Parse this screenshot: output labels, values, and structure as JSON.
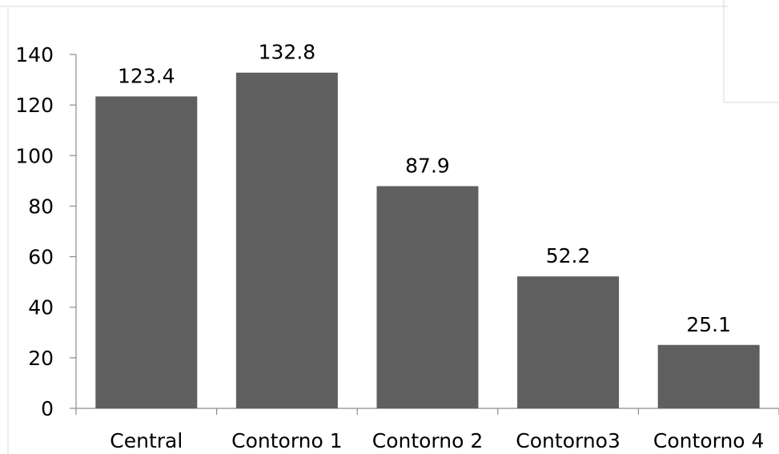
{
  "chart_data": {
    "type": "bar",
    "categories": [
      "Central",
      "Contorno 1",
      "Contorno 2",
      "Contorno3",
      "Contorno 4"
    ],
    "values": [
      123.4,
      132.8,
      87.9,
      52.2,
      25.1
    ],
    "value_labels": [
      "123.4",
      "132.8",
      "87.9",
      "52.2",
      "25.1"
    ],
    "yticks": [
      "0",
      "20",
      "40",
      "60",
      "80",
      "100",
      "120",
      "140"
    ],
    "ylim": [
      0,
      140
    ],
    "grid": false,
    "legend": "none",
    "colors": {
      "bar": "#5f5f5f",
      "axis": "#8c8c8c",
      "border": "#d9d9d9"
    }
  }
}
